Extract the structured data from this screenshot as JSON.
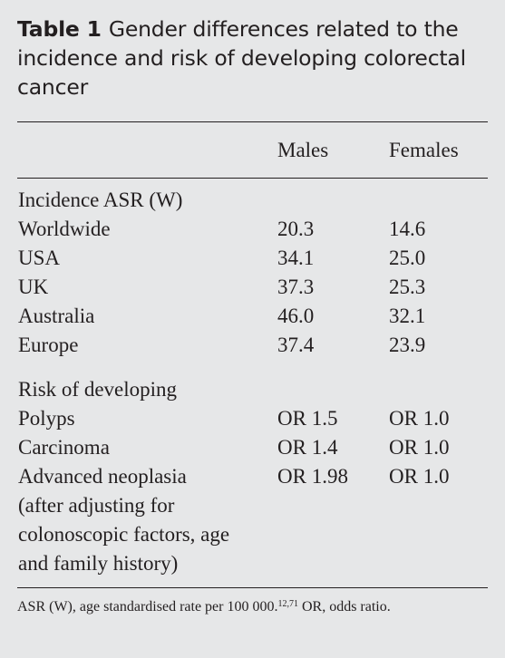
{
  "table": {
    "label": "Table 1",
    "title": "Gender differences related to the incidence and risk of developing colorectal cancer",
    "headers": [
      "Males",
      "Females"
    ],
    "sections": [
      {
        "heading": "Incidence ASR (W)",
        "rows": [
          {
            "label": "Worldwide",
            "males": "20.3",
            "females": "14.6"
          },
          {
            "label": "USA",
            "males": "34.1",
            "females": "25.0"
          },
          {
            "label": "UK",
            "males": "37.3",
            "females": "25.3"
          },
          {
            "label": "Australia",
            "males": "46.0",
            "females": "32.1"
          },
          {
            "label": "Europe",
            "males": "37.4",
            "females": "23.9"
          }
        ]
      },
      {
        "heading": "Risk of developing",
        "rows": [
          {
            "label": "Polyps",
            "males": "OR 1.5",
            "females": "OR 1.0"
          },
          {
            "label": "Carcinoma",
            "males": "OR 1.4",
            "females": "OR 1.0"
          },
          {
            "label": "Advanced neoplasia",
            "males": "OR 1.98",
            "females": "OR 1.0"
          }
        ],
        "note_lines": [
          "(after adjusting for",
          "colonoscopic factors, age",
          "and family history)"
        ]
      }
    ],
    "footnote": {
      "text_before": "ASR (W), age standardised rate per 100 000.",
      "refs": "12,71",
      "text_after": " OR, odds ratio."
    }
  }
}
